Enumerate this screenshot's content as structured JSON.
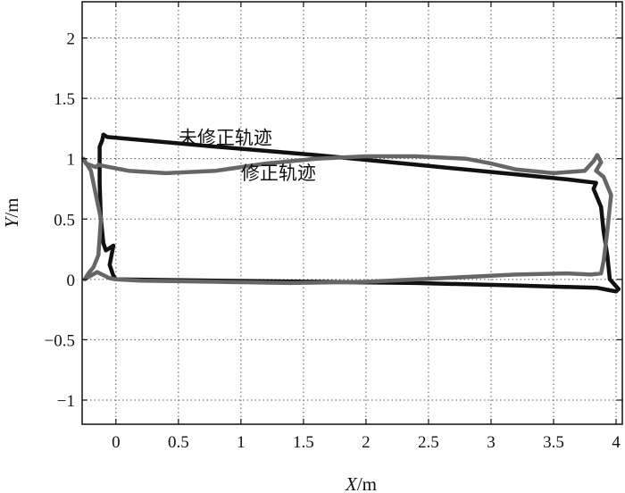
{
  "chart_data": {
    "type": "line",
    "xlabel": {
      "italic": "X",
      "unit": "/m"
    },
    "ylabel": {
      "italic": "Y",
      "unit": "/m"
    },
    "xlim": [
      -0.27,
      4.05
    ],
    "ylim": [
      -1.2,
      2.3
    ],
    "xticks": [
      0,
      0.5,
      1,
      1.5,
      2,
      2.5,
      3,
      3.5,
      4
    ],
    "xtick_labels": [
      "0",
      "0.5",
      "1",
      "1.5",
      "2",
      "2.5",
      "3",
      "3.5",
      "4"
    ],
    "yticks": [
      -1,
      -0.5,
      0,
      0.5,
      1,
      1.5,
      2
    ],
    "ytick_labels": [
      "−1",
      "−0.5",
      "0",
      "0.5",
      "1",
      "1.5",
      "2"
    ],
    "grid": true,
    "annotations": [
      {
        "text": "未修正轨迹",
        "x": 0.5,
        "y": 1.17
      },
      {
        "text": "修正轨迹",
        "x": 1.0,
        "y": 0.88
      }
    ],
    "series": [
      {
        "color": "#111111",
        "x": [
          0.0,
          0.8,
          1.6,
          2.4,
          3.2,
          3.85,
          3.95,
          4.0,
          4.02,
          3.95,
          3.93,
          3.9,
          3.88,
          3.82,
          3.84,
          3.6,
          3.2,
          2.4,
          1.6,
          0.8,
          -0.07,
          -0.1,
          -0.11,
          -0.13,
          -0.13,
          -0.12,
          -0.1,
          -0.08,
          -0.02,
          -0.05,
          -0.02,
          0.0
        ],
        "y": [
          0.0,
          -0.01,
          -0.02,
          -0.03,
          -0.05,
          -0.07,
          -0.09,
          -0.1,
          -0.08,
          0.0,
          0.2,
          0.4,
          0.6,
          0.75,
          0.8,
          0.83,
          0.87,
          0.95,
          1.03,
          1.1,
          1.18,
          1.2,
          1.15,
          1.1,
          0.8,
          0.5,
          0.3,
          0.24,
          0.28,
          0.12,
          0.03,
          0.0
        ]
      },
      {
        "color": "#666666",
        "x": [
          -0.25,
          -0.22,
          -0.18,
          -0.14,
          -0.12,
          -0.16,
          -0.2,
          -0.26,
          -0.24,
          -0.16,
          -0.14,
          -0.1,
          0.1,
          0.4,
          0.8,
          1.2,
          1.6,
          2.0,
          2.4,
          2.8,
          3.0,
          3.2,
          3.5,
          3.75,
          3.82,
          3.85,
          3.88,
          3.84,
          3.9,
          3.96,
          3.93,
          3.9,
          3.88,
          3.8,
          3.6,
          3.2,
          2.6,
          2.0,
          1.4,
          0.8,
          0.2,
          0.0,
          -0.05,
          -0.15,
          -0.22,
          -0.25
        ],
        "y": [
          0.0,
          0.05,
          0.1,
          0.2,
          0.5,
          0.7,
          0.9,
          1.0,
          0.96,
          0.93,
          0.95,
          0.94,
          0.9,
          0.88,
          0.9,
          0.96,
          1.0,
          1.02,
          1.02,
          1.0,
          0.96,
          0.91,
          0.88,
          0.9,
          0.98,
          1.03,
          0.97,
          0.9,
          0.85,
          0.7,
          0.4,
          0.15,
          0.05,
          0.04,
          0.05,
          0.04,
          0.01,
          -0.02,
          -0.03,
          -0.02,
          -0.01,
          0.0,
          0.01,
          0.06,
          0.02,
          0.0
        ]
      }
    ]
  }
}
